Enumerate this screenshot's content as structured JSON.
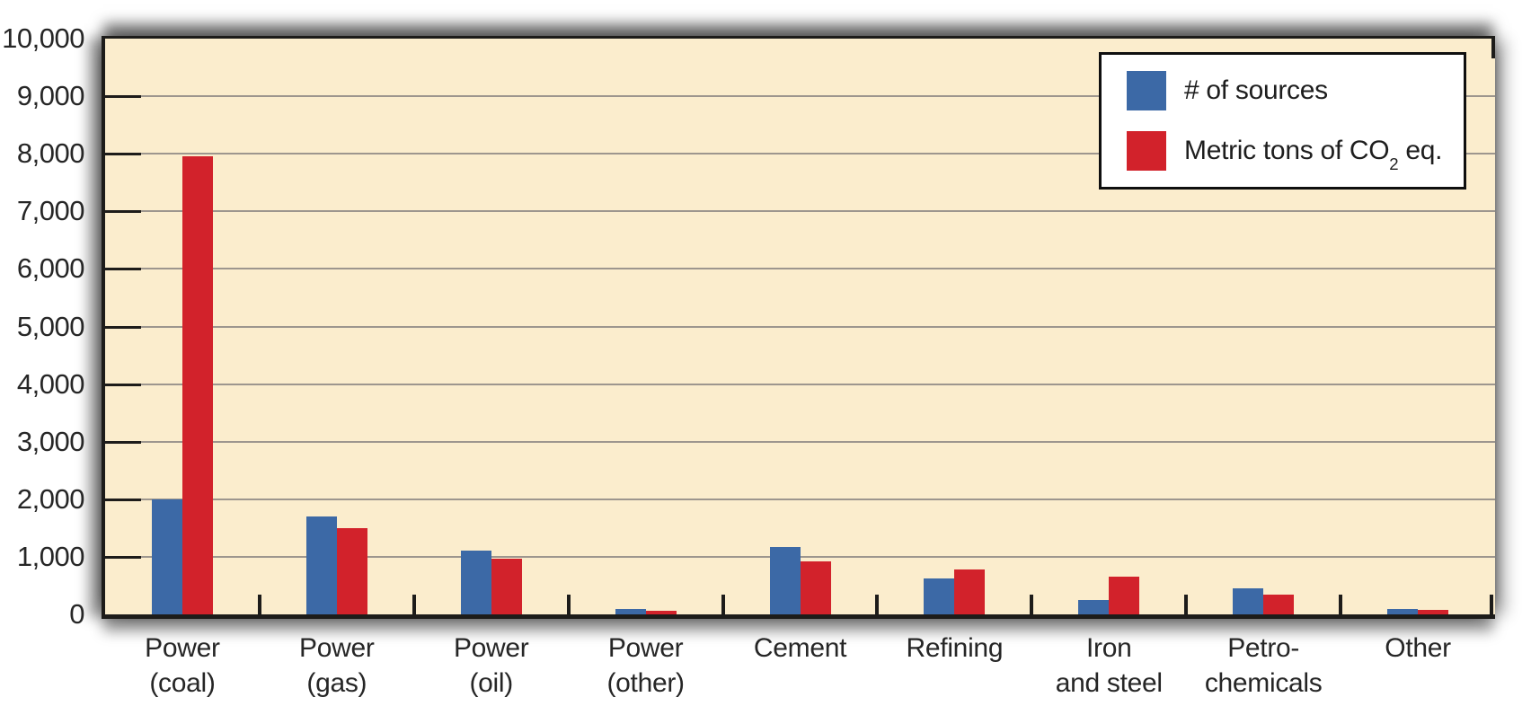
{
  "chart_data": {
    "type": "bar",
    "title": "",
    "xlabel": "",
    "ylabel": "",
    "ylim": [
      0,
      10000
    ],
    "grid": "horizontal gridlines every 1,000",
    "legend_position": "top-right",
    "categories": [
      {
        "line1": "Power",
        "line2": "(coal)"
      },
      {
        "line1": "Power",
        "line2": "(gas)"
      },
      {
        "line1": "Power",
        "line2": "(oil)"
      },
      {
        "line1": "Power",
        "line2": "(other)"
      },
      {
        "line1": "Cement",
        "line2": ""
      },
      {
        "line1": "Refining",
        "line2": ""
      },
      {
        "line1": "Iron",
        "line2": "and steel"
      },
      {
        "line1": "Petro-",
        "line2": "chemicals"
      },
      {
        "line1": "Other",
        "line2": ""
      }
    ],
    "series": [
      {
        "name": "# of sources",
        "label_prefix": "# of sources",
        "label_sub": "",
        "label_suffix": "",
        "color": "#3C69A6",
        "values": [
          2000,
          1700,
          1100,
          90,
          1175,
          625,
          250,
          450,
          100
        ]
      },
      {
        "name": "Metric tons of CO2 eq.",
        "label_prefix": "Metric tons of CO",
        "label_sub": "2",
        "label_suffix": " eq.",
        "color": "#D2222B",
        "values": [
          7950,
          1500,
          975,
          60,
          925,
          775,
          650,
          350,
          75
        ]
      }
    ],
    "y_ticks": [
      {
        "value": 0,
        "label": "0"
      },
      {
        "value": 1000,
        "label": "1,000"
      },
      {
        "value": 2000,
        "label": "2,000"
      },
      {
        "value": 3000,
        "label": "3,000"
      },
      {
        "value": 4000,
        "label": "4,000"
      },
      {
        "value": 5000,
        "label": "5,000"
      },
      {
        "value": 6000,
        "label": "6,000"
      },
      {
        "value": 7000,
        "label": "7,000"
      },
      {
        "value": 8000,
        "label": "8,000"
      },
      {
        "value": 9000,
        "label": "9,000"
      },
      {
        "value": 10000,
        "label": "10,000"
      }
    ],
    "colors": {
      "plot_background": "#FBEDCD",
      "gridline": "#9D968E",
      "axis": "#1D1C1A",
      "text": "#262626",
      "legend_background": "#FFFFFF",
      "legend_border": "#0F0F0F"
    }
  }
}
